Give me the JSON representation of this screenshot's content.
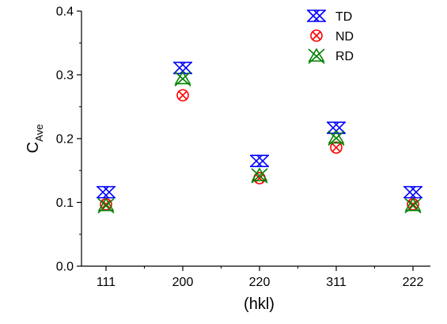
{
  "chart_data": {
    "type": "scatter",
    "title": "",
    "xlabel": "(hkl)",
    "ylabel": {
      "main": "C",
      "sub": "Ave"
    },
    "categories": [
      "111",
      "200",
      "220",
      "311",
      "222"
    ],
    "ylim": [
      0.0,
      0.4
    ],
    "yticks": [
      "0.0",
      "0.1",
      "0.2",
      "0.3",
      "0.4"
    ],
    "grid": false,
    "legend_position": "top-right",
    "series": [
      {
        "name": "TD",
        "color": "#0000ff",
        "marker": "double-x",
        "values": [
          0.116,
          0.311,
          0.165,
          0.217,
          0.116
        ]
      },
      {
        "name": "ND",
        "color": "#ff0000",
        "marker": "circle-x",
        "values": [
          0.097,
          0.268,
          0.138,
          0.186,
          0.097
        ]
      },
      {
        "name": "RD",
        "color": "#008000",
        "marker": "triangle-x",
        "values": [
          0.096,
          0.295,
          0.143,
          0.202,
          0.096
        ]
      }
    ]
  }
}
